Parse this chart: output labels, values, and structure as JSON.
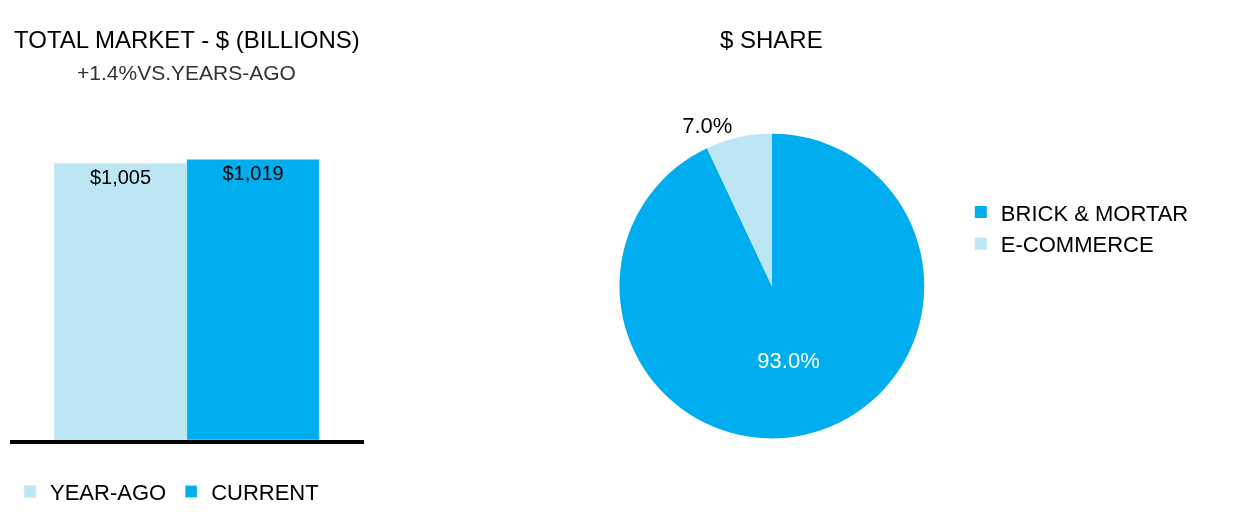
{
  "chart_data": [
    {
      "type": "bar",
      "title": "TOTAL MARKET - $ (BILLIONS)",
      "subtitle": "+1.4%VS.YEARS-AGO",
      "categories": [
        null
      ],
      "legend": "bottom",
      "series": [
        {
          "name": "YEAR-AGO",
          "color": "#bde6f4",
          "values": [
            1005
          ],
          "value_labels": [
            "$1,005"
          ]
        },
        {
          "name": "CURRENT",
          "color": "#00aeef",
          "values": [
            1019
          ],
          "value_labels": [
            "$1,019"
          ]
        }
      ]
    },
    {
      "type": "pie",
      "title": "$ SHARE",
      "categories": [
        "BRICK & MORTAR",
        "E-COMMERCE"
      ],
      "values": [
        93.0,
        7.0
      ],
      "colors": [
        "#00aeef",
        "#bde6f4"
      ],
      "value_labels": [
        "93.0%",
        "7.0%"
      ],
      "legend": "right"
    }
  ]
}
